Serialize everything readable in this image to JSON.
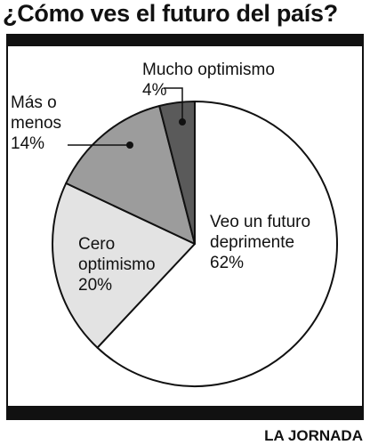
{
  "title": "¿Cómo ves el futuro del país?",
  "credit": "LA JORNADA",
  "colors": {
    "frame": "#111111",
    "background": "#ffffff",
    "slices": [
      "#ffffff",
      "#e3e3e3",
      "#9c9c9c",
      "#5a5a5a"
    ]
  },
  "chart_data": {
    "type": "pie",
    "title": "¿Cómo ves el futuro del país?",
    "start_angle_deg": 0,
    "direction": "clockwise",
    "slices": [
      {
        "label_lines": [
          "Veo un futuro",
          "deprimente"
        ],
        "value_label": "62%",
        "value": 62
      },
      {
        "label_lines": [
          "Cero",
          "optimismo"
        ],
        "value_label": "20%",
        "value": 20
      },
      {
        "label_lines": [
          "Más o",
          "menos"
        ],
        "value_label": "14%",
        "value": 14
      },
      {
        "label_lines": [
          "Mucho optimismo"
        ],
        "value_label": "4%",
        "value": 4
      }
    ]
  }
}
